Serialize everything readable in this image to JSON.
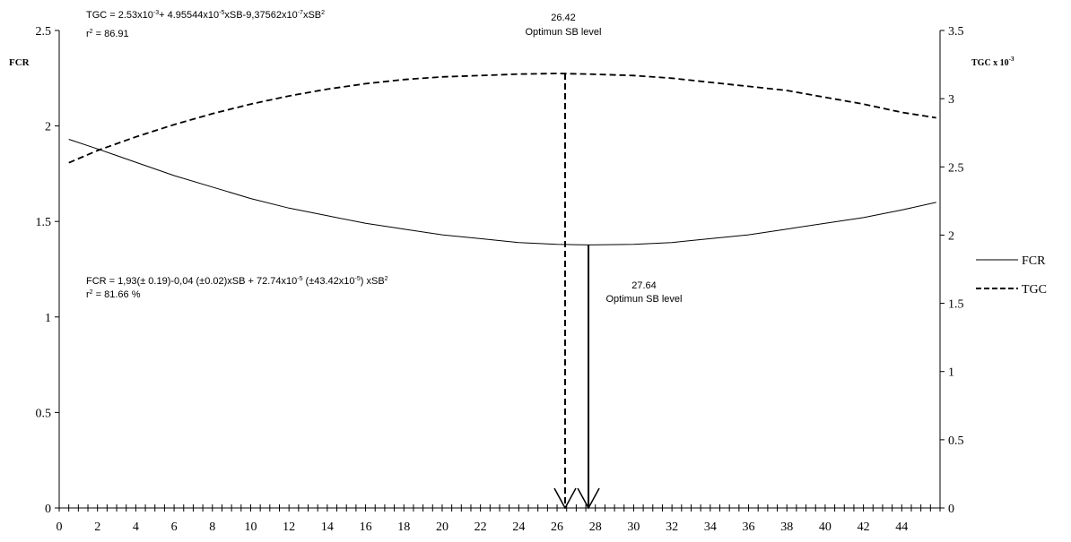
{
  "chart_data": {
    "type": "line",
    "left_axis": {
      "label": "FCR",
      "ylim": [
        0,
        2.5
      ],
      "ticks": [
        "0",
        "0.5",
        "1",
        "1.5",
        "2",
        "2.5"
      ]
    },
    "right_axis": {
      "label_main": "TGC x 10",
      "label_sup": "-3",
      "ylim": [
        0,
        3.5
      ],
      "ticks": [
        "0",
        "0.5",
        "1",
        "1.5",
        "2",
        "2.5",
        "3",
        "3.5"
      ]
    },
    "x_axis": {
      "xlim": [
        0,
        46
      ],
      "ticks": [
        "0",
        "2",
        "4",
        "6",
        "8",
        "10",
        "12",
        "14",
        "16",
        "18",
        "20",
        "22",
        "24",
        "26",
        "28",
        "30",
        "32",
        "34",
        "36",
        "38",
        "40",
        "42",
        "44"
      ]
    },
    "x": [
      0.5,
      2,
      4,
      6,
      8,
      10,
      12,
      14,
      16,
      18,
      20,
      22,
      24,
      26,
      27.64,
      30,
      32,
      34,
      36,
      38,
      40,
      42,
      44,
      45.8
    ],
    "series": [
      {
        "name": "FCR",
        "axis": "left",
        "style": "solid",
        "values": [
          1.93,
          1.88,
          1.81,
          1.74,
          1.68,
          1.62,
          1.57,
          1.53,
          1.49,
          1.46,
          1.43,
          1.41,
          1.39,
          1.38,
          1.377,
          1.38,
          1.39,
          1.41,
          1.43,
          1.46,
          1.49,
          1.52,
          1.56,
          1.6
        ]
      },
      {
        "name": "TGC",
        "axis": "right",
        "style": "dashed",
        "values": [
          2.53,
          2.62,
          2.72,
          2.81,
          2.89,
          2.96,
          3.02,
          3.07,
          3.11,
          3.14,
          3.16,
          3.17,
          3.18,
          3.185,
          3.18,
          3.17,
          3.15,
          3.12,
          3.09,
          3.06,
          3.01,
          2.96,
          2.9,
          2.86
        ]
      }
    ],
    "optimum_tgc": {
      "x": 26.42,
      "value_label": "26.42",
      "text": "Optimun SB level"
    },
    "optimum_fcr": {
      "x": 27.64,
      "value_label": "27.64",
      "text": "Optimun SB level"
    },
    "tgc_equation": {
      "line1": "TGC = 2.53x10",
      "sup1": "-3",
      "line2": "+ 4.95544x10",
      "sup2": "-5",
      "line3": "xSB-9,37562x10",
      "sup3": "-7",
      "line4": "xSB",
      "sup4": "2",
      "r2_label": "r",
      "r2_sup": "2",
      "r2_value": " = 86.91"
    },
    "fcr_equation": {
      "line1": "FCR = 1,93(± 0.19)-0,04 (±0.02)xSB + 72.74x10",
      "sup1": "-5",
      "line2": " (±43.42x10",
      "sup2": "-5",
      "line3": ") xSB",
      "sup3": "2",
      "r2_label": "r",
      "r2_sup": "2",
      "r2_value": " = 81.66 %"
    },
    "legend": [
      {
        "name": "FCR",
        "style": "solid"
      },
      {
        "name": "TGC",
        "style": "dashed"
      }
    ]
  }
}
